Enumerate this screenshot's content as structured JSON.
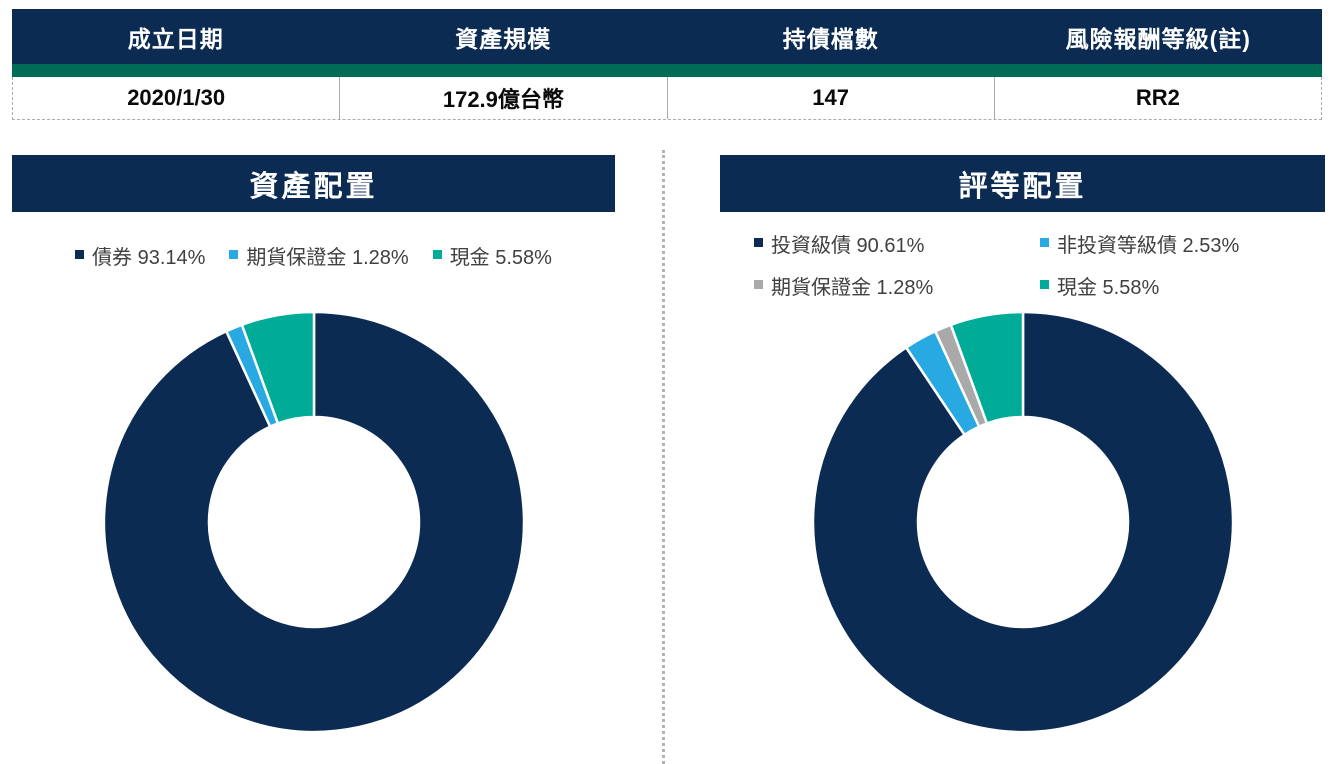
{
  "info_table": {
    "columns": [
      {
        "header": "成立日期",
        "value": "2020/1/30"
      },
      {
        "header": "資產規模",
        "value": "172.9億台幣"
      },
      {
        "header": "持債檔數",
        "value": "147"
      },
      {
        "header": "風險報酬等級(註)",
        "value": "RR2"
      }
    ]
  },
  "chart_data": [
    {
      "type": "pie",
      "subtype": "donut",
      "title": "資產配置",
      "labels": [
        "債券",
        "期貨保證金",
        "現金"
      ],
      "values": [
        93.14,
        1.28,
        5.58
      ],
      "colors": [
        "#0B2B53",
        "#29A9E1",
        "#00AC97"
      ],
      "legend": [
        {
          "text": "債券 93.14%",
          "color": "#0B2B53"
        },
        {
          "text": "期貨保證金 1.28%",
          "color": "#29A9E1"
        },
        {
          "text": "現金 5.58%",
          "color": "#00AC97"
        }
      ],
      "legend_position": "top",
      "start_angle_deg": -90,
      "direction": "clockwise",
      "inner_radius_ratio": 0.5
    },
    {
      "type": "pie",
      "subtype": "donut",
      "title": "評等配置",
      "labels": [
        "投資級債",
        "非投資等級債",
        "期貨保證金",
        "現金"
      ],
      "values": [
        90.61,
        2.53,
        1.28,
        5.58
      ],
      "colors": [
        "#0B2B53",
        "#29A9E1",
        "#A9A9A9",
        "#00AC97"
      ],
      "legend": [
        {
          "text": "投資級債 90.61%",
          "color": "#0B2B53"
        },
        {
          "text": "非投資等級債 2.53%",
          "color": "#29A9E1"
        },
        {
          "text": "期貨保證金 1.28%",
          "color": "#A9A9A9"
        },
        {
          "text": "現金 5.58%",
          "color": "#00AC97"
        }
      ],
      "legend_position": "top",
      "start_angle_deg": -90,
      "direction": "clockwise",
      "inner_radius_ratio": 0.5
    }
  ],
  "theme": {
    "navy": "#0B2B53",
    "green_stripe": "#006C55",
    "legend_text": "#404040",
    "border_gray": "#ABABAB",
    "slice_border": "#FFFFFF"
  }
}
